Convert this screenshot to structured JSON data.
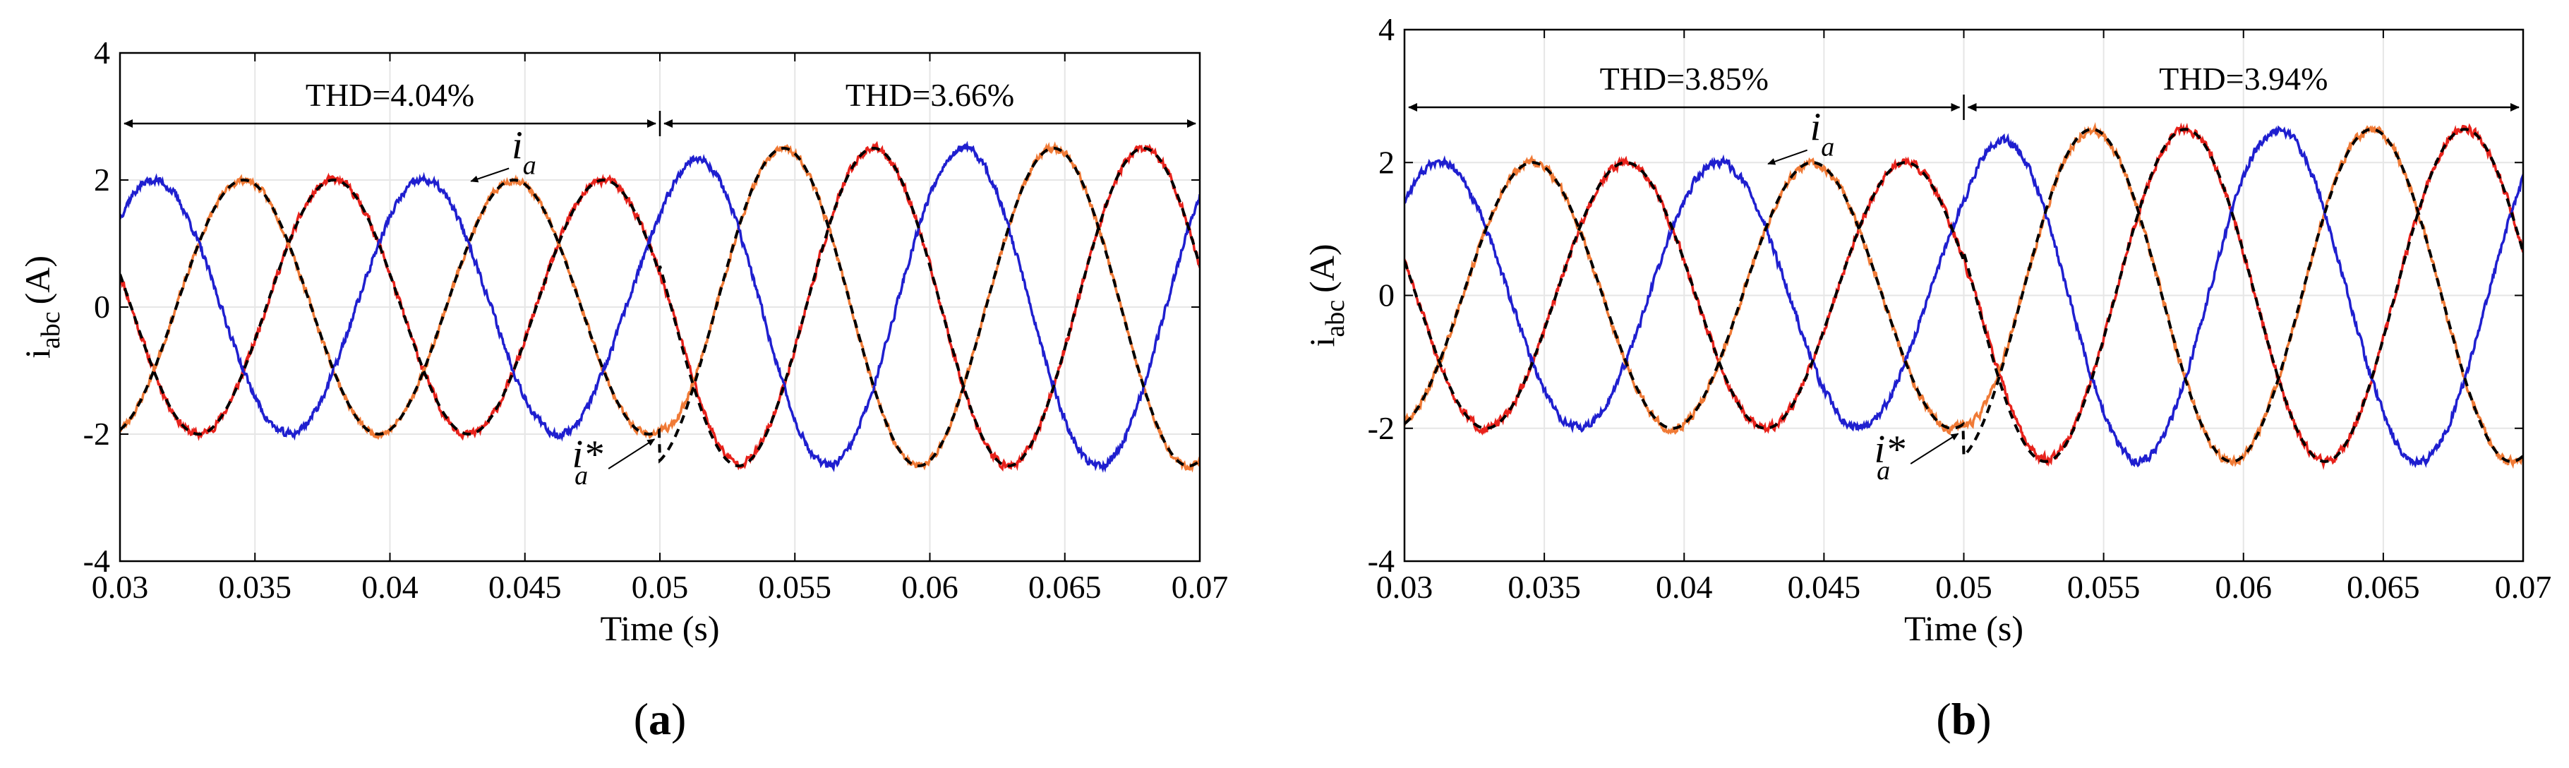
{
  "chart_data": [
    {
      "type": "line",
      "panel_label": "a",
      "xlabel": "Time (s)",
      "ylabel_main": "i",
      "ylabel_sub": "abc",
      "ylabel_unit": "(A)",
      "xlim": [
        0.03,
        0.07
      ],
      "ylim": [
        -4,
        4
      ],
      "x_ticks": [
        0.03,
        0.035,
        0.04,
        0.045,
        0.05,
        0.055,
        0.06,
        0.065,
        0.07
      ],
      "x_tick_labels": [
        "0.03",
        "0.035",
        "0.04",
        "0.045",
        "0.05",
        "0.055",
        "0.06",
        "0.065",
        "0.07"
      ],
      "y_ticks": [
        -4,
        -2,
        0,
        2,
        4
      ],
      "y_tick_labels": [
        "-4",
        "-2",
        "0",
        "2",
        "4"
      ],
      "grid": true,
      "frequency_hz": 100,
      "step_time": 0.05,
      "amplitude_before": 2.0,
      "amplitude_after": 2.5,
      "series": [
        {
          "name": "phase a",
          "color": "#e8231c",
          "phase_deg": 165,
          "noise": 0.06,
          "seed": 11
        },
        {
          "name": "phase b",
          "color": "#f07a36",
          "phase_deg": -75,
          "noise": 0.05,
          "seed": 23
        },
        {
          "name": "phase c",
          "color": "#1f1fcf",
          "phase_deg": 45,
          "noise": 0.06,
          "seed": 37
        },
        {
          "name": "reference",
          "color": "#000000",
          "dashed": true,
          "phase_deg": [
            165,
            -75
          ]
        }
      ],
      "annotations": {
        "thd_before": "THD=4.04%",
        "thd_after": "THD=3.66%",
        "ia_label": "i",
        "ia_sub": "a",
        "iastar_label": "i*",
        "iastar_sub": "a"
      }
    },
    {
      "type": "line",
      "panel_label": "b",
      "xlabel": "Time (s)",
      "ylabel_main": "i",
      "ylabel_sub": "abc",
      "ylabel_unit": "(A)",
      "xlim": [
        0.03,
        0.07
      ],
      "ylim": [
        -4,
        4
      ],
      "x_ticks": [
        0.03,
        0.035,
        0.04,
        0.045,
        0.05,
        0.055,
        0.06,
        0.065,
        0.07
      ],
      "x_tick_labels": [
        "0.03",
        "0.035",
        "0.04",
        "0.045",
        "0.05",
        "0.055",
        "0.06",
        "0.065",
        "0.07"
      ],
      "y_ticks": [
        -4,
        -2,
        0,
        2,
        4
      ],
      "y_tick_labels": [
        "-4",
        "-2",
        "0",
        "2",
        "4"
      ],
      "grid": true,
      "frequency_hz": 100,
      "step_time": 0.05,
      "amplitude_before": 2.0,
      "amplitude_after": 2.5,
      "series": [
        {
          "name": "phase a",
          "color": "#e8231c",
          "phase_deg": 165,
          "noise": 0.06,
          "seed": 51
        },
        {
          "name": "phase b",
          "color": "#f07a36",
          "phase_deg": -75,
          "noise": 0.06,
          "seed": 63
        },
        {
          "name": "phase c",
          "color": "#1f1fcf",
          "phase_deg": 45,
          "noise": 0.06,
          "seed": 77
        },
        {
          "name": "reference",
          "color": "#000000",
          "dashed": true,
          "phase_deg": [
            165,
            -75
          ]
        }
      ],
      "annotations": {
        "thd_before": "THD=3.85%",
        "thd_after": "THD=3.94%",
        "ia_label": "i",
        "ia_sub": "a",
        "iastar_label": "i*",
        "iastar_sub": "a"
      }
    }
  ]
}
